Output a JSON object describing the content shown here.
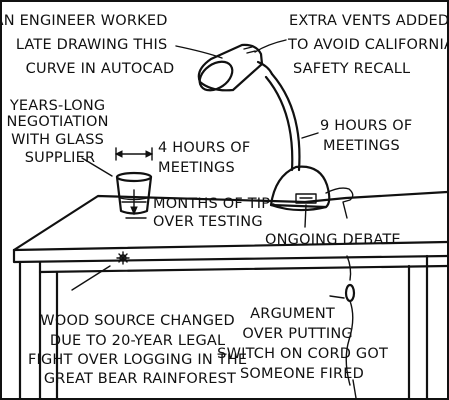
{
  "comic": {
    "labels": {
      "engineer": [
        "AN ENGINEER WORKED",
        "LATE DRAWING THIS",
        "CURVE IN AUTOCAD"
      ],
      "vents": [
        "EXTRA VENTS ADDED",
        "TO AVOID CALIFORNIA",
        "SAFETY RECALL"
      ],
      "negotiation": [
        "YEARS-LONG",
        "NEGOTIATION",
        "WITH GLASS",
        "SUPPLIER"
      ],
      "cup_meetings": [
        "4 HOURS OF",
        "MEETINGS"
      ],
      "arm_meetings": [
        "9 HOURS OF",
        "MEETINGS"
      ],
      "tipover": [
        "MONTHS OF TIP-",
        "OVER TESTING"
      ],
      "debate": [
        "ONGOING DEBATE"
      ],
      "wood": [
        "WOOD SOURCE CHANGED",
        "DUE TO 20-YEAR LEGAL",
        "FIGHT OVER LOGGING IN THE",
        "GREAT BEAR RAINFOREST"
      ],
      "argument": [
        "ARGUMENT",
        "OVER PUTTING",
        "SWITCH ON CORD GOT",
        "SOMEONE FIRED"
      ]
    },
    "icons": {
      "lamp": "desk-lamp-icon",
      "cup": "glass-cup-icon",
      "table": "wooden-table-icon",
      "switch": "cord-switch-icon"
    }
  }
}
